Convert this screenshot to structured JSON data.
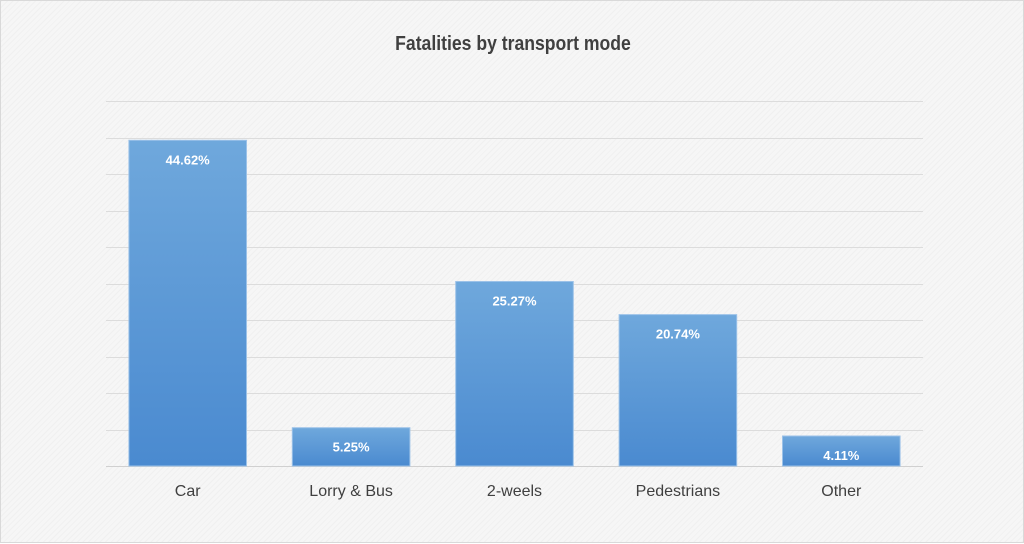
{
  "chart_data": {
    "type": "bar",
    "title": "Fatalities by transport mode",
    "categories": [
      "Car",
      "Lorry & Bus",
      "2-weels",
      "Pedestrians",
      "Other"
    ],
    "values": [
      44.62,
      5.25,
      25.27,
      20.74,
      4.11
    ],
    "data_labels": [
      "44.62%",
      "5.25%",
      "25.27%",
      "20.74%",
      "4.11%"
    ],
    "ylim": [
      0,
      50
    ],
    "ytick_step": 5,
    "grid": true,
    "legend": "none",
    "bar_color": "#5b9bd5"
  }
}
